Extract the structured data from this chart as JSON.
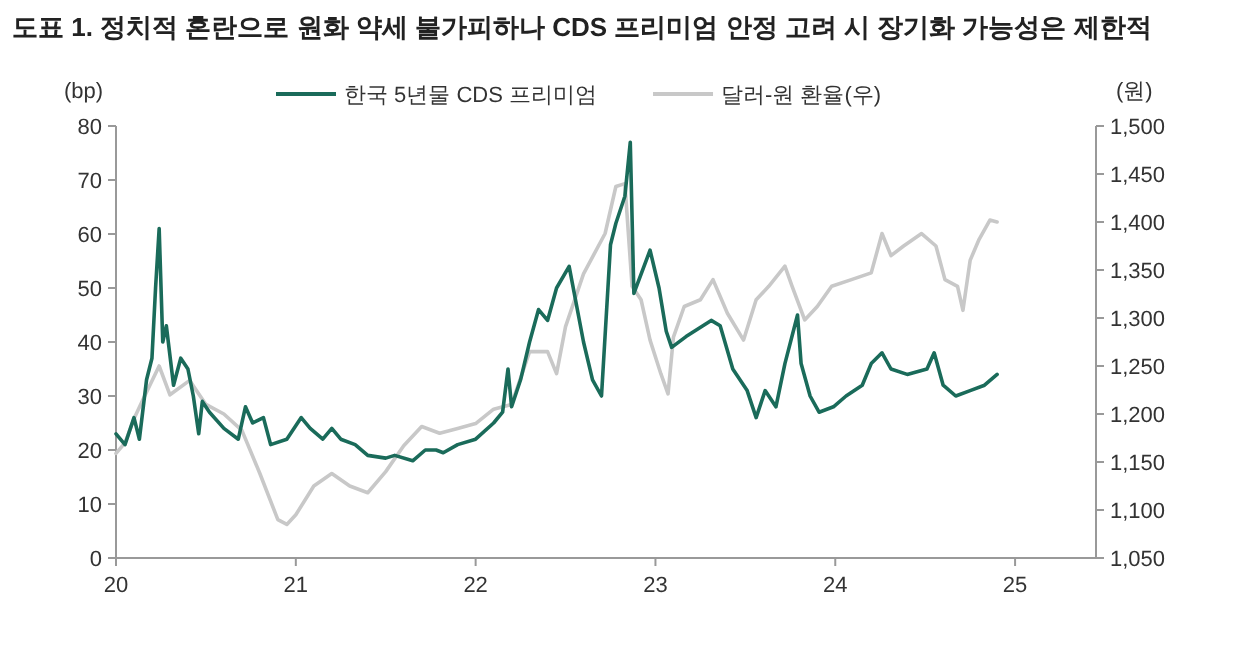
{
  "chart_data": {
    "type": "line",
    "title": "도표 1. 정치적 혼란으로 원화 약세 불가피하나 CDS 프리미엄 안정 고려 시 장기화 가능성은 제한적",
    "ylabel": "(bp)",
    "y2label": "(원)",
    "xlim": [
      20,
      25.45
    ],
    "xticks": [
      20,
      21,
      22,
      23,
      24,
      25
    ],
    "ylim": [
      0,
      80
    ],
    "yticks": [
      0,
      10,
      20,
      30,
      40,
      50,
      60,
      70,
      80
    ],
    "y2lim": [
      1050,
      1500
    ],
    "y2ticks": [
      {
        "value": 1050,
        "label": "1,050"
      },
      {
        "value": 1100,
        "label": "1,100"
      },
      {
        "value": 1150,
        "label": "1,150"
      },
      {
        "value": 1200,
        "label": "1,200"
      },
      {
        "value": 1250,
        "label": "1,250"
      },
      {
        "value": 1300,
        "label": "1,300"
      },
      {
        "value": 1350,
        "label": "1,350"
      },
      {
        "value": 1400,
        "label": "1,400"
      },
      {
        "value": 1450,
        "label": "1,450"
      },
      {
        "value": 1500,
        "label": "1,500"
      }
    ],
    "grid": false,
    "legend": "top",
    "line_style": "solid",
    "series": [
      {
        "name": "달러-원 환율(우)",
        "color": "#c8c8c8",
        "axis": "y2",
        "x": [
          20.0,
          20.05,
          20.1,
          20.15,
          20.24,
          20.3,
          20.41,
          20.5,
          20.6,
          20.7,
          20.8,
          20.9,
          20.95,
          21.0,
          21.1,
          21.2,
          21.3,
          21.4,
          21.5,
          21.6,
          21.7,
          21.8,
          21.9,
          22.0,
          22.1,
          22.2,
          22.3,
          22.4,
          22.45,
          22.5,
          22.6,
          22.72,
          22.78,
          22.83,
          22.87,
          22.92,
          22.97,
          23.03,
          23.07,
          23.1,
          23.16,
          23.25,
          23.32,
          23.4,
          23.49,
          23.56,
          23.63,
          23.72,
          23.76,
          23.83,
          23.9,
          23.98,
          24.09,
          24.2,
          24.26,
          24.31,
          24.38,
          24.48,
          24.56,
          24.61,
          24.68,
          24.71,
          24.75,
          24.8,
          24.86,
          24.9
        ],
        "values": [
          1159,
          1170,
          1195,
          1215,
          1250,
          1220,
          1235,
          1210,
          1200,
          1183,
          1138,
          1090,
          1085,
          1095,
          1125,
          1138,
          1125,
          1118,
          1140,
          1167,
          1187,
          1180,
          1185,
          1190,
          1205,
          1210,
          1265,
          1265,
          1242,
          1291,
          1346,
          1388,
          1437,
          1440,
          1333,
          1319,
          1277,
          1242,
          1221,
          1280,
          1312,
          1319,
          1340,
          1305,
          1277,
          1319,
          1333,
          1354,
          1333,
          1298,
          1312,
          1333,
          1340,
          1347,
          1388,
          1365,
          1375,
          1388,
          1375,
          1340,
          1333,
          1308,
          1360,
          1382,
          1402,
          1400
        ]
      },
      {
        "name": "한국 5년물 CDS 프리미엄",
        "color": "#1a6b5a",
        "axis": "y",
        "x": [
          20.0,
          20.05,
          20.1,
          20.13,
          20.17,
          20.2,
          20.22,
          20.24,
          20.26,
          20.28,
          20.32,
          20.36,
          20.4,
          20.43,
          20.46,
          20.48,
          20.52,
          20.6,
          20.68,
          20.72,
          20.76,
          20.82,
          20.86,
          20.95,
          21.03,
          21.08,
          21.15,
          21.2,
          21.25,
          21.33,
          21.4,
          21.5,
          21.55,
          21.65,
          21.72,
          21.78,
          21.82,
          21.9,
          22.0,
          22.1,
          22.15,
          22.18,
          22.2,
          22.25,
          22.3,
          22.35,
          22.4,
          22.45,
          22.52,
          22.6,
          22.65,
          22.7,
          22.75,
          22.78,
          22.83,
          22.86,
          22.88,
          22.97,
          23.02,
          23.06,
          23.09,
          23.17,
          23.31,
          23.36,
          23.43,
          23.51,
          23.56,
          23.61,
          23.67,
          23.72,
          23.79,
          23.81,
          23.86,
          23.91,
          23.99,
          24.06,
          24.15,
          24.2,
          24.26,
          24.31,
          24.4,
          24.51,
          24.55,
          24.6,
          24.67,
          24.75,
          24.83,
          24.9
        ],
        "values": [
          23,
          21,
          26,
          22,
          33,
          37,
          50,
          61,
          40,
          43,
          32,
          37,
          35,
          30,
          23,
          29,
          27,
          24,
          22,
          28,
          25,
          26,
          21,
          22,
          26,
          24,
          22,
          24,
          22,
          21,
          19,
          18.5,
          19,
          18,
          20,
          20,
          19.5,
          21,
          22,
          25,
          27,
          35,
          28,
          33,
          40,
          46,
          44,
          50,
          54,
          40,
          33,
          30,
          58,
          62,
          67,
          77,
          49,
          57,
          50,
          42,
          39,
          41,
          44,
          43,
          35,
          31,
          26,
          31,
          28,
          36,
          45,
          36,
          30,
          27,
          28,
          30,
          32,
          36,
          38,
          35,
          34,
          35,
          38,
          32,
          30,
          31,
          32,
          34
        ]
      }
    ]
  }
}
